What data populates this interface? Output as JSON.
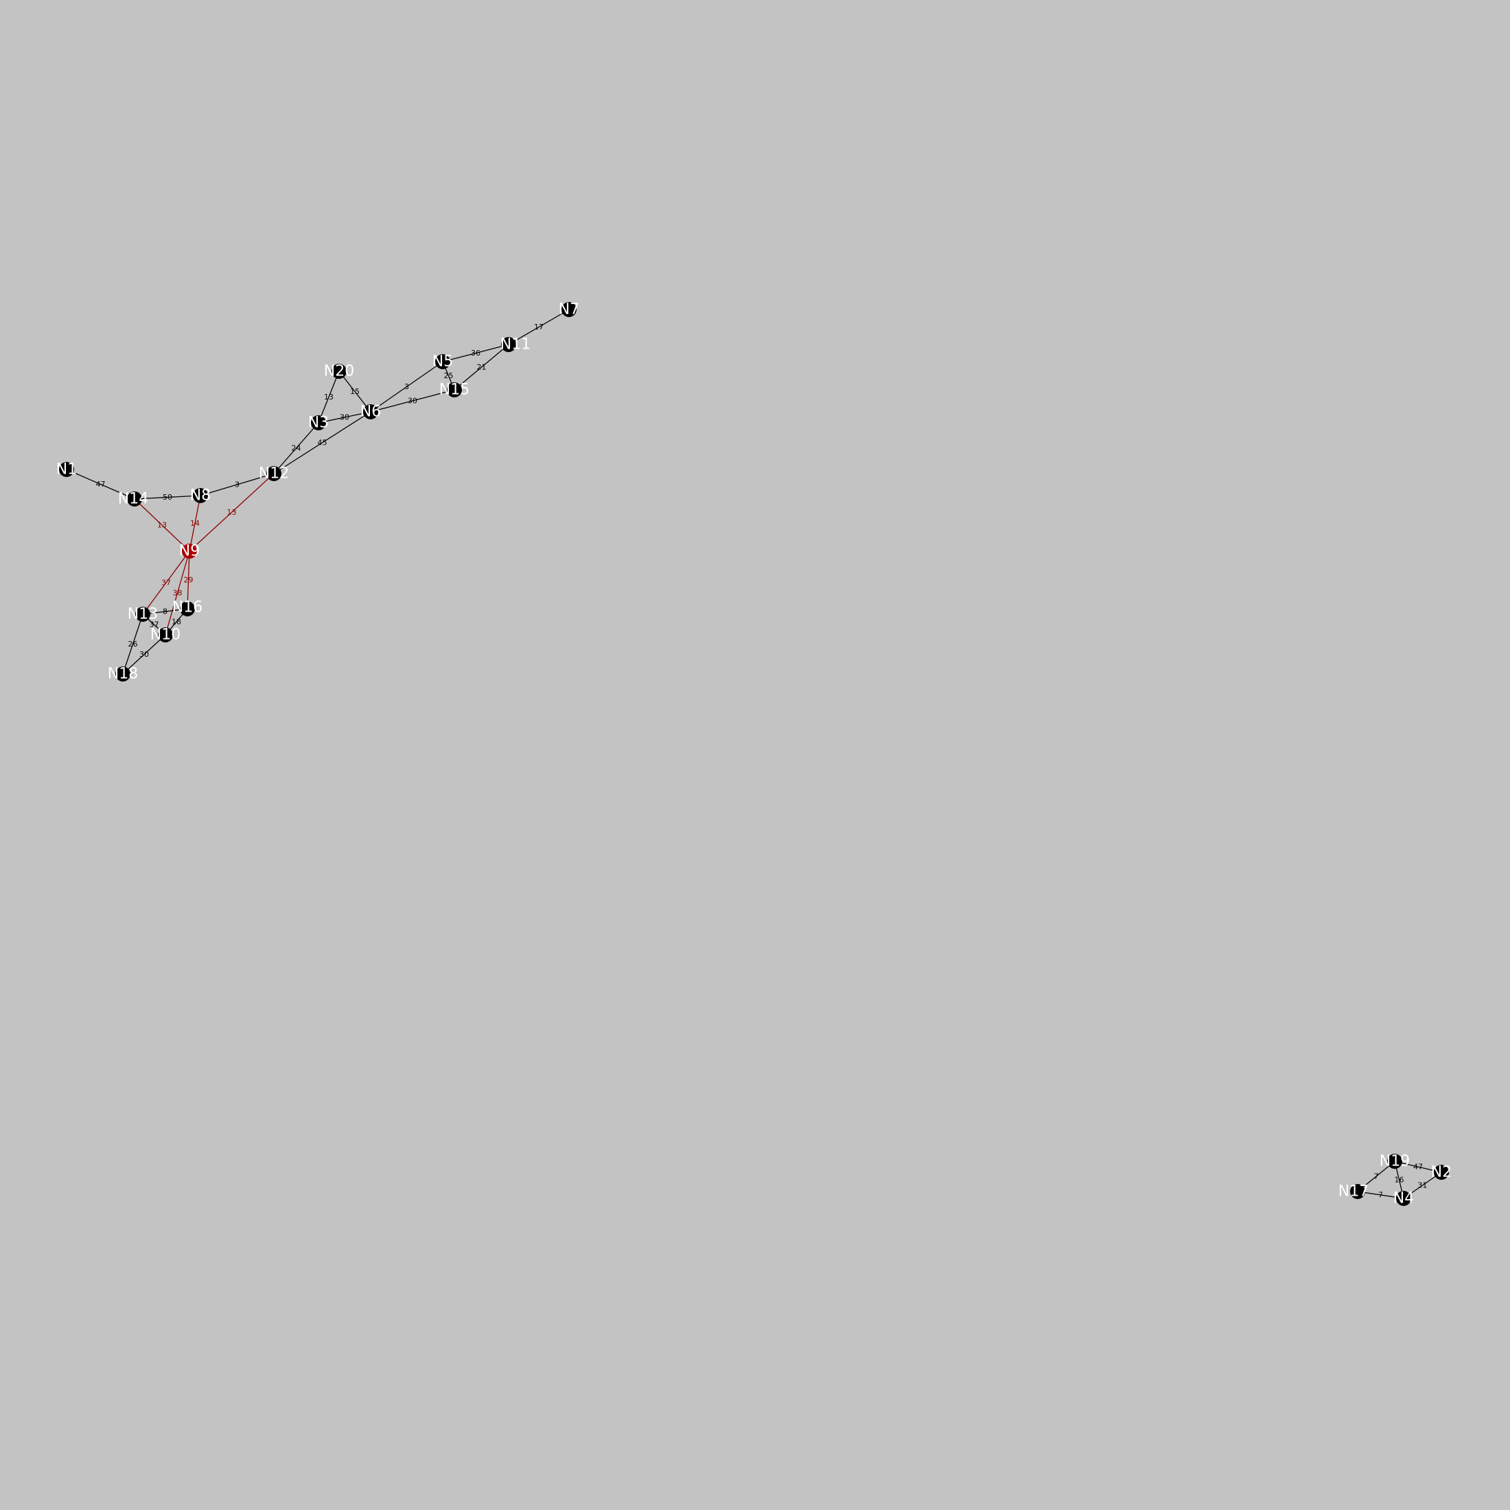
{
  "colors": {
    "background": "#c3c3c3",
    "node": "#000000",
    "node_highlight": "#b00000",
    "edge": "#000000",
    "edge_highlight": "#8b0000",
    "node_label": "#ffffff"
  },
  "graph": {
    "highlighted_node": "N9",
    "nodes": [
      {
        "id": "N1",
        "label": "N1"
      },
      {
        "id": "N2",
        "label": "N2"
      },
      {
        "id": "N3",
        "label": "N3"
      },
      {
        "id": "N4",
        "label": "N4"
      },
      {
        "id": "N5",
        "label": "N5"
      },
      {
        "id": "N6",
        "label": "N6"
      },
      {
        "id": "N7",
        "label": "N7"
      },
      {
        "id": "N8",
        "label": "N8"
      },
      {
        "id": "N9",
        "label": "N9"
      },
      {
        "id": "N10",
        "label": "N10"
      },
      {
        "id": "N11",
        "label": "N11"
      },
      {
        "id": "N12",
        "label": "N12"
      },
      {
        "id": "N13",
        "label": "N13"
      },
      {
        "id": "N14",
        "label": "N14"
      },
      {
        "id": "N15",
        "label": "N15"
      },
      {
        "id": "N16",
        "label": "N16"
      },
      {
        "id": "N17",
        "label": "N17"
      },
      {
        "id": "N18",
        "label": "N18"
      },
      {
        "id": "N19",
        "label": "N19"
      },
      {
        "id": "N20",
        "label": "N20"
      }
    ],
    "edges": [
      {
        "source": "N7",
        "target": "N11",
        "weight": "17"
      },
      {
        "source": "N11",
        "target": "N5",
        "weight": "36"
      },
      {
        "source": "N11",
        "target": "N15",
        "weight": "21"
      },
      {
        "source": "N5",
        "target": "N15",
        "weight": "25"
      },
      {
        "source": "N5",
        "target": "N6",
        "weight": "3"
      },
      {
        "source": "N15",
        "target": "N6",
        "weight": "30"
      },
      {
        "source": "N20",
        "target": "N3",
        "weight": "13"
      },
      {
        "source": "N20",
        "target": "N6",
        "weight": "15"
      },
      {
        "source": "N3",
        "target": "N6",
        "weight": "30"
      },
      {
        "source": "N3",
        "target": "N12",
        "weight": "24"
      },
      {
        "source": "N6",
        "target": "N12",
        "weight": "45"
      },
      {
        "source": "N1",
        "target": "N14",
        "weight": "47"
      },
      {
        "source": "N14",
        "target": "N8",
        "weight": "50"
      },
      {
        "source": "N8",
        "target": "N12",
        "weight": "3"
      },
      {
        "source": "N14",
        "target": "N9",
        "weight": "13"
      },
      {
        "source": "N8",
        "target": "N9",
        "weight": "14"
      },
      {
        "source": "N12",
        "target": "N9",
        "weight": "13"
      },
      {
        "source": "N9",
        "target": "N13",
        "weight": "37"
      },
      {
        "source": "N9",
        "target": "N10",
        "weight": "38"
      },
      {
        "source": "N9",
        "target": "N16",
        "weight": "29"
      },
      {
        "source": "N13",
        "target": "N16",
        "weight": "8"
      },
      {
        "source": "N13",
        "target": "N10",
        "weight": "37"
      },
      {
        "source": "N16",
        "target": "N10",
        "weight": "18"
      },
      {
        "source": "N13",
        "target": "N18",
        "weight": "26"
      },
      {
        "source": "N10",
        "target": "N18",
        "weight": "30"
      },
      {
        "source": "N19",
        "target": "N2",
        "weight": "47"
      },
      {
        "source": "N19",
        "target": "N17",
        "weight": "7"
      },
      {
        "source": "N19",
        "target": "N4",
        "weight": "16"
      },
      {
        "source": "N17",
        "target": "N4",
        "weight": "7"
      },
      {
        "source": "N2",
        "target": "N4",
        "weight": "31"
      }
    ]
  }
}
